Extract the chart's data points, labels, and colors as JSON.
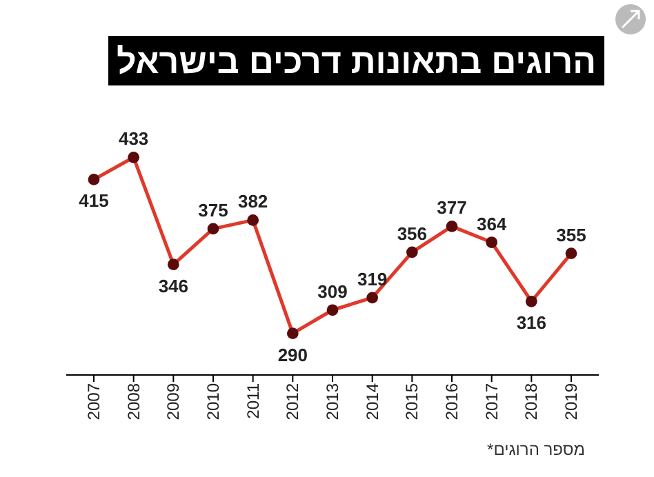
{
  "chart_data": {
    "type": "line",
    "title": "הרוגים בתאונות דרכים בישראל",
    "categories": [
      "2007",
      "2008",
      "2009",
      "2010",
      "2011",
      "2012",
      "2013",
      "2014",
      "2015",
      "2016",
      "2017",
      "2018",
      "2019"
    ],
    "series": [
      {
        "color": "#e0392b",
        "values": [
          415,
          433,
          346,
          375,
          382,
          290,
          309,
          319,
          356,
          377,
          364,
          316,
          355
        ]
      }
    ],
    "marker": "circle",
    "data_labels": true,
    "grid": false,
    "annotations": [
      "*מספר הרוגים"
    ]
  }
}
